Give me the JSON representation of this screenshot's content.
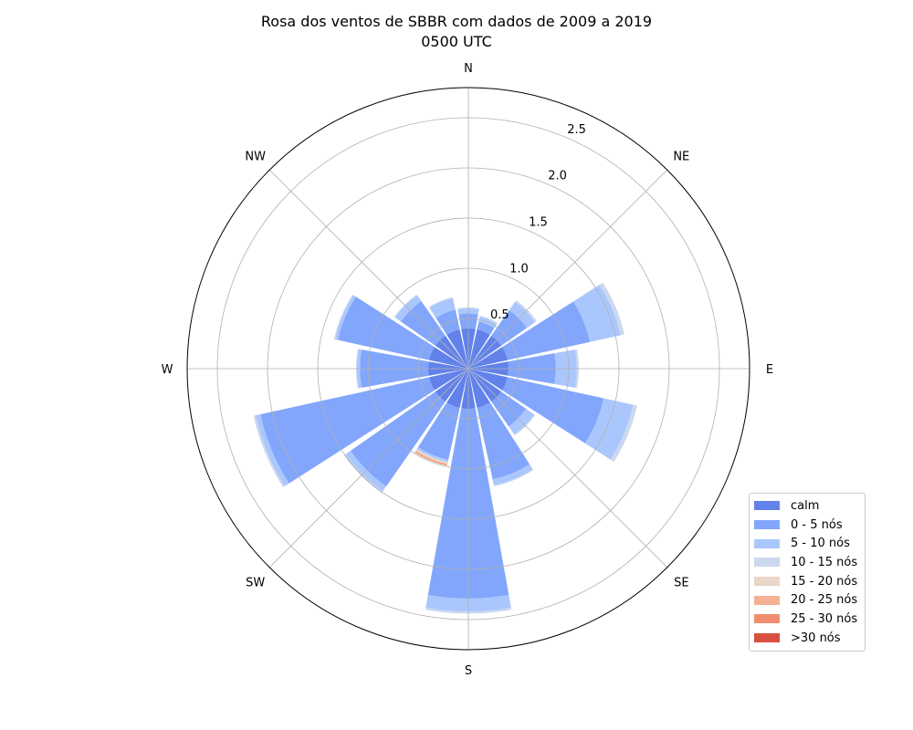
{
  "chart_data": {
    "type": "windrose",
    "title": "Rosa dos ventos de SBBR com dados de 2009 a 2019",
    "subtitle": "0500 UTC",
    "directions": [
      "N",
      "NNE",
      "NE",
      "ENE",
      "E",
      "ESE",
      "SE",
      "SSE",
      "S",
      "SSW",
      "SW",
      "WSW",
      "W",
      "WNW",
      "NW",
      "NNW"
    ],
    "compass_labels": [
      "N",
      "NE",
      "E",
      "SE",
      "S",
      "SW",
      "W",
      "NW"
    ],
    "radial_ticks": [
      "0.5",
      "1.0",
      "1.5",
      "2.0",
      "2.5"
    ],
    "radial_tick_values": [
      0.5,
      1.0,
      1.5,
      2.0,
      2.5
    ],
    "rlim": [
      0,
      2.8
    ],
    "grid": true,
    "legend_position": "lower-right",
    "series": [
      {
        "name": "calm",
        "color": "#6282ea",
        "values": [
          0.4,
          0.4,
          0.4,
          0.4,
          0.4,
          0.4,
          0.4,
          0.4,
          0.4,
          0.4,
          0.4,
          0.4,
          0.4,
          0.4,
          0.4,
          0.4
        ]
      },
      {
        "name": "0 - 5 nós",
        "color": "#82a6fb",
        "values": [
          0.15,
          0.08,
          0.31,
          0.84,
          0.47,
          0.98,
          0.3,
          0.73,
          1.89,
          0.53,
          1.03,
          1.72,
          0.68,
          0.93,
          0.42,
          0.2
        ]
      },
      {
        "name": "5 - 10 nós",
        "color": "#aac7fd",
        "values": [
          0.05,
          0.05,
          0.1,
          0.31,
          0.21,
          0.3,
          0.1,
          0.06,
          0.13,
          0.02,
          0.06,
          0.05,
          0.03,
          0.03,
          0.07,
          0.12
        ]
      },
      {
        "name": "10 - 15 nós",
        "color": "#cbd8ee",
        "values": [
          0.01,
          0.01,
          0.02,
          0.04,
          0.02,
          0.04,
          0.01,
          0.01,
          0.02,
          0.01,
          0.02,
          0.02,
          0.01,
          0.01,
          0.01,
          0.01
        ]
      },
      {
        "name": "15 - 20 nós",
        "color": "#ead5c9",
        "values": [
          0,
          0,
          0,
          0,
          0,
          0,
          0,
          0,
          0,
          0.01,
          0,
          0,
          0,
          0,
          0,
          0
        ]
      },
      {
        "name": "20 - 25 nós",
        "color": "#f5b194",
        "values": [
          0,
          0,
          0,
          0,
          0,
          0,
          0,
          0,
          0,
          0.01,
          0,
          0,
          0,
          0,
          0,
          0
        ]
      },
      {
        "name": "25 - 30 nós",
        "color": "#f18d6f",
        "values": [
          0,
          0,
          0,
          0,
          0,
          0,
          0,
          0,
          0,
          0.01,
          0,
          0,
          0,
          0,
          0,
          0
        ]
      },
      {
        "name": ">30 nós",
        "color": "#d8503f",
        "values": [
          0,
          0,
          0,
          0,
          0,
          0,
          0,
          0,
          0,
          0,
          0,
          0,
          0,
          0,
          0,
          0
        ]
      }
    ]
  }
}
